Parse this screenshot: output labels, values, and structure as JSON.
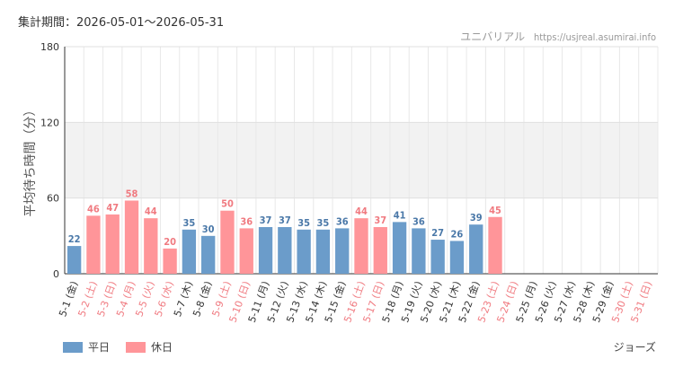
{
  "header": {
    "period": "集計期間：2026-05-01～2026-05-31",
    "site_name": "ユニバリアル",
    "site_url": "https://usjreal.asumirai.info"
  },
  "attraction": "ジョーズ",
  "legend": {
    "weekday_label": "平日",
    "holiday_label": "休日"
  },
  "colors": {
    "weekday": "#6b9cca",
    "holiday": "#ff9599",
    "weekday_text": "#4a78a8",
    "holiday_text": "#f07a80"
  },
  "chart_data": {
    "type": "bar",
    "ylabel": "平均待ち時間（分）",
    "ylim": [
      0,
      180
    ],
    "yticks": [
      0,
      60,
      120,
      180
    ],
    "shaded_band": [
      60,
      120
    ],
    "categories": [
      "5-1 (金)",
      "5-2 (土)",
      "5-3 (日)",
      "5-4 (月)",
      "5-5 (火)",
      "5-6 (水)",
      "5-7 (木)",
      "5-8 (金)",
      "5-9 (土)",
      "5-10 (日)",
      "5-11 (月)",
      "5-12 (火)",
      "5-13 (水)",
      "5-14 (木)",
      "5-15 (金)",
      "5-16 (土)",
      "5-17 (日)",
      "5-18 (月)",
      "5-19 (火)",
      "5-20 (水)",
      "5-21 (木)",
      "5-22 (金)",
      "5-23 (土)",
      "5-24 (日)",
      "5-25 (月)",
      "5-26 (火)",
      "5-27 (水)",
      "5-28 (木)",
      "5-29 (金)",
      "5-30 (土)",
      "5-31 (日)"
    ],
    "day_type": [
      "weekday",
      "holiday",
      "holiday",
      "holiday",
      "holiday",
      "holiday",
      "weekday",
      "weekday",
      "holiday",
      "holiday",
      "weekday",
      "weekday",
      "weekday",
      "weekday",
      "weekday",
      "holiday",
      "holiday",
      "weekday",
      "weekday",
      "weekday",
      "weekday",
      "weekday",
      "holiday",
      "holiday",
      "weekday",
      "weekday",
      "weekday",
      "weekday",
      "weekday",
      "holiday",
      "holiday"
    ],
    "values": [
      22,
      46,
      47,
      58,
      44,
      20,
      35,
      30,
      50,
      36,
      37,
      37,
      35,
      35,
      36,
      44,
      37,
      41,
      36,
      27,
      26,
      39,
      45,
      null,
      null,
      null,
      null,
      null,
      null,
      null,
      null
    ]
  }
}
